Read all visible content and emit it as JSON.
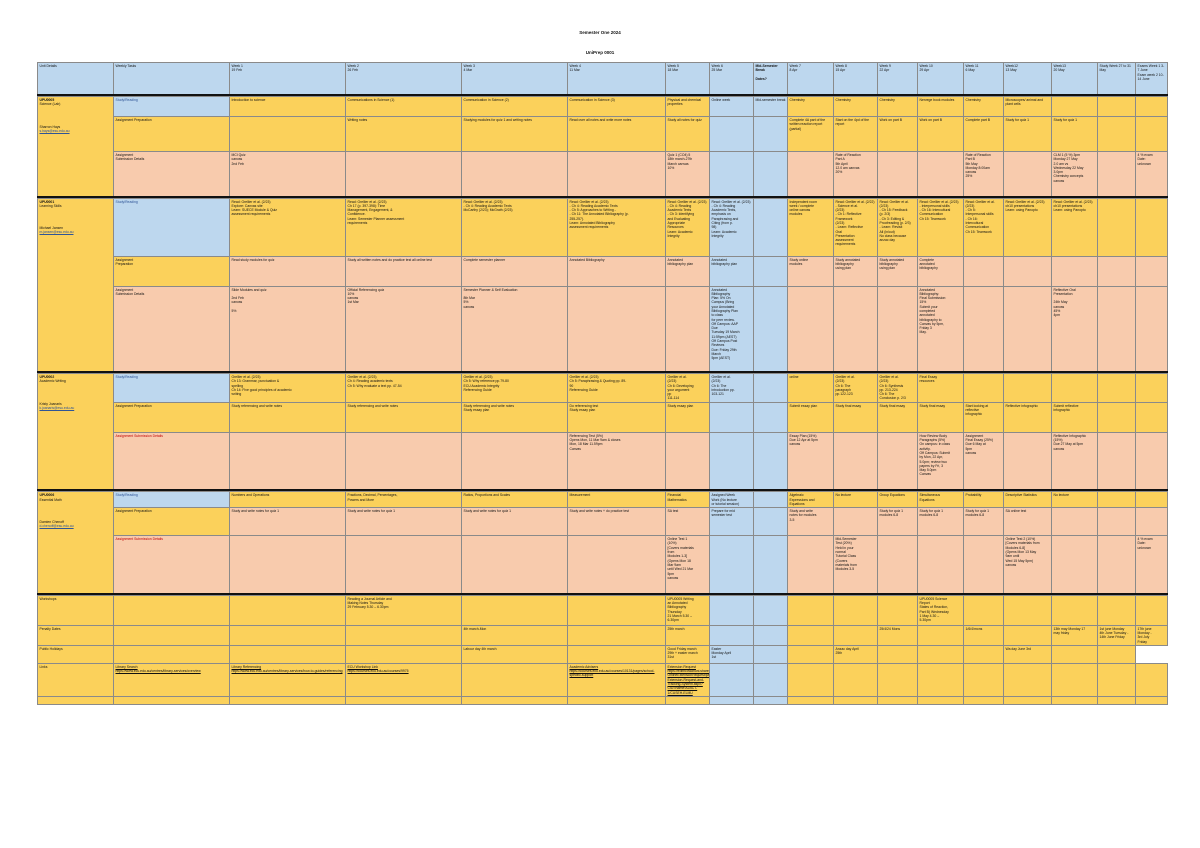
{
  "header": {
    "title": "Semester One 2024",
    "subtitle": "UniPrep 0001"
  },
  "columns": [
    "Unit Details",
    "Weekly Tasks",
    "Week 1\n19 Feb",
    "Week 2\n26 Feb",
    "Week 3\n4 Mar",
    "Week 4\n11 Mar",
    "Week 5\n18 Mar",
    "Week 6\n25 Mar",
    "Mid-Semester Break\n\nDates?",
    "Week 7\n8 Apr",
    "Week 8\n15 Apr",
    "Week 9\n22 Apr",
    "Week 10\n29 Apr",
    "Week 11\n6 May",
    "Week12\n13 May",
    "Week13\n20 May",
    "Study Week 27 to 31 May",
    "Exams Week 1 3-7 June\nExam week 2 10-14 June"
  ],
  "units": [
    {
      "code": "UPU0005",
      "name": "Science (Lab)",
      "tutor": "Sharron Hays",
      "email": "s.hays@esu.edu.au",
      "rows": [
        {
          "label": "Study/Reading",
          "cells": [
            "Introduction to science",
            "Communications in Science (1)",
            "Communication in Science (2)",
            "Communication in Science (3)",
            "Physical and chemical properties",
            "Online week",
            "Mid-semester break",
            "Chemistry",
            "Chemistry",
            "Chemistry",
            "Nervege book modules",
            "Chemistry",
            "Microscopes/ animal and plant cells",
            "",
            "",
            ""
          ]
        },
        {
          "label": "Assignment Preparation",
          "cells": [
            "",
            "Writing notes",
            "Studying modules for quiz 1 and writing notes",
            "Read over all notes and write more notes",
            "Study all notes for quiz",
            "",
            "",
            "Complete 4A part of the written reaction report (partial)",
            "Start on the 4pd of the report",
            "Work on part B",
            "Work on part B",
            "Complete part B",
            "Study for quiz 1",
            "Study for quiz 1",
            "",
            ""
          ]
        },
        {
          "label": "Assignment\nSubmission Details",
          "cells": [
            "MCI Quiz\ncanvas\n2nd Feb",
            "",
            "",
            "",
            "Quiz 1 (CO4) 5\n18th march-27th\nMarch canvas\n10%",
            "",
            "",
            "",
            "Rate of Reaction\nPart A\n5th April\n12.0 am canvas\n20%",
            "",
            "",
            "Rate of Reaction\nPart B\n5th May\nMonday 8:00am\ncanvas\n25%",
            "",
            "CLM 1 (5 %) 3pm\nMonday 27 May\n2.0 am vs\nWednesday 22 May\n3.0pm\nChemistry concepts\ncanvas",
            "",
            "4 % exam\nDate:\nunknown"
          ]
        }
      ]
    },
    {
      "code": "UPU0001",
      "name": "Learning Skills",
      "tutor": "Michael Jansen",
      "email": "m.jansen@esu.edu.au",
      "rows": [
        {
          "label": "Study/Reading",
          "cells": [
            "Read: Grellier et al. (2/23)\nExplore: Canvas site\nLearn: SUECE Module & Quiz\nassessment requirements",
            "Read: Grellier et al. (2/23)\nCh 17 (p. 397-398): Time\nManagement, Engagement, &\nConfidence.\nLearn: Semester Planner assessment\nrequirements",
            "Read: Grellier et al. (2/23)\n- Ch 4: Reading Academic Texts\nMcCarthy (2/23); McGrath (2/23)",
            "Read: Grellier et al. (2/23)\n- Ch 4: Reading Academic Texts\n- Ch 5: Approaches to Writing -\n- Ch 11: The Annotated Bibliography (p.\n255-257).\nLearn: Annotated Bibliography\nassessment requirements",
            "Read: Grellier et al. (2/23)\n- Ch 4: Reading\nAcademic Texts\n- Ch 3: Identifying\nand Evaluating\nAppropriate\nResources\nLearn: Academic\nIntegrity",
            "Read: Grellier et al. (2/23)\n- Ch 4: Reading\nAcademic Texts,\nemphasis on\nParaphrasing and\nCiting (from p.\n98)\nLearn: Academic\nIntegrity",
            "",
            "Independent room\nweek / complete\nonline canvas\nmodules",
            "Read: Grellier et al. (2/22)\n- Science et al.\n(2/23)\n- Ch 1: Reflective\nFramework\n(2/23)\n- Learn: Reflective\nOral\nPresentation\nassessment\nrequirements",
            "Read: Grellier et al. (2/23)\n- Ch 15: Feedback\n(p. 2/3)\n- Ch 3: Editing &\nProofreading (p. 2/3)\n- Learn: Revisit\nAll (in/out)\nNo class because\nanzac day",
            "Read: Grellier et al. (2/23)\n- Interpersonal skills\n- Ch 16: Intercultural\nCommunication\nCh 15: Teamwork",
            "Read: Grellier et al. (2/23)\n- Ch 5:\nInterpersonal skills\n- Ch 16:\nIntercultural\nCommunication\nCh 15: Teamwork",
            "Read: Grellier et al. (2/23)\nch10 presentations\nLearn: using Panopto",
            "Read: Grellier et al. (2/23)\nch10 presentations\nLearn: using Panopto",
            "",
            ""
          ]
        },
        {
          "label": "Assignment\nPreparation",
          "cells": [
            "Read study modules for quiz",
            "Study all written notes and do practice test all online test",
            "Complete semester planner",
            "Annotated Bibliography",
            "Annotated\nbibliography plan",
            "Annotated\nbibliography plan",
            "",
            "Study online\nmodules",
            "Study annotated\nbibliography\nusing plan",
            "Study annotated\nbibliography\nusing plan",
            "Complete\nannotated\nbibliography",
            "",
            "",
            "",
            "",
            ""
          ]
        },
        {
          "label": "Assignment\nSubmission Details",
          "cells": [
            "Slide Modules and quiz\n\n2nd Feb\ncanvas\n\n5%",
            "Official Referencing quiz\n10%\ncanvas\n1st Mar",
            "Semester Planner & Self Evaluation\n\n8th Mar\n5%\ncanvas",
            "",
            "",
            "Annotated\nBibliography\nPlan: 5% On\nCampus (Bring\nyour Annotated\nBibliography Plan\nto class\nfor peer review.\nOff Campus: AAP\nDue\nTuesday 19 March\n11:59pm (AEST)\nOff Campus Post\nReviews\nDue: Friday 29th\nMarch\n5pm (AEST)",
            "",
            "",
            "",
            "",
            "Annotated\nBibliography:\nFinal Submission:\n15%\nSubmit your\ncompleted\nannotated\nbibliography to\nCanvas by 5pm,\nFriday 3\nMay.",
            "",
            "",
            "Reflective Oral\nPresentation\n\n24th May\ncanvas\n45%\n4pm",
            "",
            ""
          ]
        }
      ]
    },
    {
      "code": "UPU0002",
      "name": "Academic Writing",
      "tutor": "Kristy Joanaris",
      "email": "k.joanaris@esu.edu.au",
      "rows": [
        {
          "label": "Study/Reading",
          "cells": [
            "Grellier et al. (2/23)\nCh 13: Grammar, punctuation &\nspelling\nCh 14: Five good principles of academic\nwriting",
            "Grellier et al. (2/23)\nCh 4: Reading academic texts\nCh 5: Why evaluate a text pp. 47-54",
            "Grellier et al. (2/23)\nCh 5: Why reference pp.79-80\nECU Academic Integrity\nReferencing Guide",
            "Grellier et al. (2/23)\nCh 5: Paraphrasing & Quoting pp. 89-\n90\nReferencing Guide",
            "Grellier et al.\n(2/23)\nCh 6: Developing\nyour argument\npp\n111-114",
            "Grellier et al.\n(2/23)\nCh 6: The\nintroduction pp.\n103-121",
            "",
            "online",
            "Grellier et al.\n(2/23)\nCh 6: The\nparagraph\npp.122-123",
            "Grellier et al.\n(2/23)\nCh 6: Synthesis\npp. 213-224\nCh 6: The\nConclusion p. 2/3",
            "Final Essay\nresources",
            "",
            "",
            "",
            "",
            ""
          ]
        },
        {
          "label": "Assignment Preparation",
          "cells": [
            "Study referencing and write notes",
            "Study referencing and write notes",
            "Study referencing and write notes\nStudy essay plan",
            "Do referencing test\nStudy essay plan",
            "Study essay plan",
            "",
            "",
            "Submit essay plan",
            "Study final essay",
            "Study final essay",
            "Study final essay",
            "Start looking at\nreflective\ninfographic",
            "Reflective infographic",
            "Submit reflective\ninfographic",
            "",
            ""
          ]
        },
        {
          "label": "Assignment Submission Details",
          "cells": [
            "",
            "",
            "",
            "Referencing Test (5%)\nOpens Mon, 11 Mar 9am & closes\nMon, 18 Mar 11.59pm\nCanvas",
            "",
            "",
            "",
            "Essay Plan (15%)\nDue 12 Apr at 5pm\ncanvas",
            "",
            "",
            "How Review Body\nParagraphs (5%)\nOn campus: in class\nactivity.\nOff Campus: Submit\nby Mon, 22 Apr,\n5.0pm; review two\npapers by Fri, 3\nMay 5.0pm\nCanvas",
            "Assignment\nFinal Essay (25%)\nDue 6 May at\n5pm\ncanvas",
            "",
            "Reflective Infographic\n(15%)\nDue 27 May at 5pm\ncanvas",
            "",
            ""
          ]
        }
      ]
    },
    {
      "code": "UPU0006",
      "name": "Essential Math",
      "tutor": "Damien Chenoff",
      "email": "d.chenoff@esu.edu.au",
      "rows": [
        {
          "label": "Study/Reading",
          "cells": [
            "Numbers and Operations",
            "Fractions, Decimal, Percentages,\nPowers and More",
            "Ratios, Proportions and Scales",
            "Measurement",
            "Financial\nMathematics",
            "Assigned Week\nWork (No lecture\nor tutorial session)",
            "",
            "Algebraic\nExpressions and\nEquations",
            "No lecture",
            "Group Equations",
            "Simultaneous\nEquations",
            "Probability",
            "Descriptive Statistics",
            "No lecture",
            "",
            ""
          ]
        },
        {
          "label": "Assignment Preparation",
          "cells": [
            "Study and write notes for quiz 1",
            "Study and write notes for quiz 1",
            "Study and write notes for quiz 1",
            "Study and write notes + do practice test",
            "SA test",
            "Prepare for mid\nsemester test",
            "",
            "Study and write\nnotes for modules\n3-5",
            "",
            "Study for quiz 1\nmodules 6-8",
            "Study for quiz 1\nmodules 6-8",
            "Study for quiz 1\nmodules 6-8",
            "SA online test",
            "",
            "",
            ""
          ]
        },
        {
          "label": "Assignment Submission Details",
          "cells": [
            "",
            "",
            "",
            "",
            "Online Test 1\n(10%)\n[Covers materials\nfrom\nModules 1-3]\n(Opens Mon 18\nMar 9am\nuntil Wed 21 Mar\n5pm\ncanvas",
            "",
            "",
            "",
            "Mid-Semester\nTest (20%)\nHeld in your\nnormal\nTutorial Class\n(Covers\nmaterials from\nModules 3-5",
            "",
            "",
            "",
            "Online Test 2 (10%)\n[Covers materials from\nModules 6-8]\n(Opens Mon 13 May\n9am until\nWed 15 May 5pm)\ncanvas",
            "",
            "",
            "4 % exam\nDate:\nunknown"
          ]
        }
      ]
    }
  ],
  "extra_rows": [
    {
      "label": "Workshops",
      "cells": [
        "",
        "",
        "Reading a Journal Article and\nMaking Notes Thursday\n29 February 5.30 – 6.30pm",
        "",
        "",
        "UPU0005 Writing\nan Annotated\nBibliography\nThursday\n21 March 5.30 –\n6.30pm",
        "",
        "",
        "",
        "",
        "",
        "UPU0005 Science\nReport\nStates of Reaction,\nPart B) Wednesday\n1 May 4.30 –\n5.30pm",
        "",
        "",
        "",
        "",
        ""
      ]
    },
    {
      "label": "Penalty Dates",
      "cells": [
        "",
        "",
        "",
        "4th march-Mon",
        "",
        "25th march",
        "",
        "",
        "",
        "",
        "25/4/24 Mons",
        "",
        "1/6/4/mons",
        "",
        "13th may Monday 17\nmay friday",
        "1st june Monday\n4th June Tuesday -\n14th June Friday",
        "17th june\nMonday -\n3rd July\nFriday"
      ]
    },
    {
      "label": "Public Holidays",
      "cells": [
        "",
        "",
        "",
        "Labour day 4th march",
        "",
        "Good Friday march\n29th + easter march\n31st",
        "Easter\nMonday April\n1st",
        "",
        "",
        "Anzac day April\n25th",
        "",
        "",
        "",
        "Wa day June 3rd",
        "",
        ""
      ]
    },
    {
      "label": "Links",
      "cells": [
        "Library Search\nhttps://www.ecu.edu.au/centres/library-services/overview",
        "Library Referencing\nhttps://www.ecu.edu.au/centres/library-services/how-to-guides/referencing",
        "ECU Workshop Link\nhttps://courses.ecu.edu.au/courses/9975",
        "",
        "Academic Advisers\nhttps://courses.ecu.edu.au/courses/10131/pages/school-specific-support",
        "Extension Request\nhttps://edithcowanuni.sharepoint.com/sites/ECU-OnlineExtensionRequest/parent/tool/SitePages/Online-Extension-Request-and-Tracking-System.aspx?CID=Name:ALBCT-1/CUSEH-ELMU",
        "",
        "",
        "",
        "",
        "",
        "",
        "",
        "",
        "",
        "",
        ""
      ]
    }
  ],
  "colors": {
    "yellow": "#fbd15b",
    "peach": "#f8cbad",
    "blue": "#bdd7ee",
    "link_blue": "#2f5597",
    "red_label": "#c00000"
  }
}
